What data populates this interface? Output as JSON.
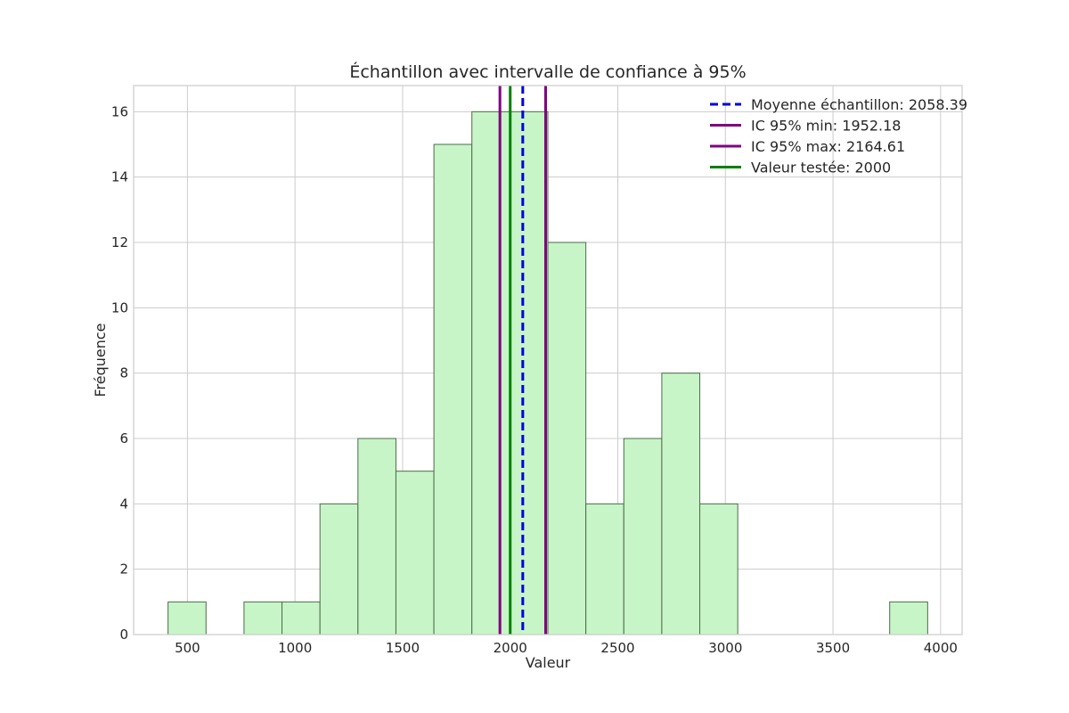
{
  "chart_data": {
    "type": "bar",
    "subtype": "histogram",
    "title": "Échantillon avec intervalle de confiance à 95%",
    "xlabel": "Valeur",
    "ylabel": "Fréquence",
    "xlim": [
      250,
      4100
    ],
    "ylim": [
      0,
      16.8
    ],
    "xticks": [
      500,
      1000,
      1500,
      2000,
      2500,
      3000,
      3500,
      4000
    ],
    "yticks": [
      0,
      2,
      4,
      6,
      8,
      10,
      12,
      14,
      16
    ],
    "grid": true,
    "legend_position": "top-right",
    "bin_edges": [
      410,
      586.5,
      763,
      939.5,
      1116,
      1292.5,
      1469,
      1645.5,
      1822,
      1998.5,
      2175,
      2351.5,
      2528,
      2704.5,
      2881,
      3057.5,
      3234,
      3410.5,
      3587,
      3763.5,
      3940
    ],
    "counts": [
      1,
      0,
      1,
      1,
      4,
      6,
      5,
      15,
      16,
      16,
      12,
      4,
      6,
      8,
      4,
      0,
      0,
      0,
      0,
      1
    ],
    "bar_color": "#c7f5c7",
    "bar_edge_color": "#4d6b4d",
    "reference_lines": [
      {
        "name": "Moyenne échantillon: 2058.39",
        "x": 2058.39,
        "color": "#0000dd",
        "style": "dashed"
      },
      {
        "name": "IC 95% min: 1952.18",
        "x": 1952.18,
        "color": "#800080",
        "style": "solid"
      },
      {
        "name": "IC 95% max: 2164.61",
        "x": 2164.61,
        "color": "#800080",
        "style": "solid"
      },
      {
        "name": "Valeur testée: 2000",
        "x": 2000,
        "color": "#008000",
        "style": "solid"
      }
    ]
  }
}
